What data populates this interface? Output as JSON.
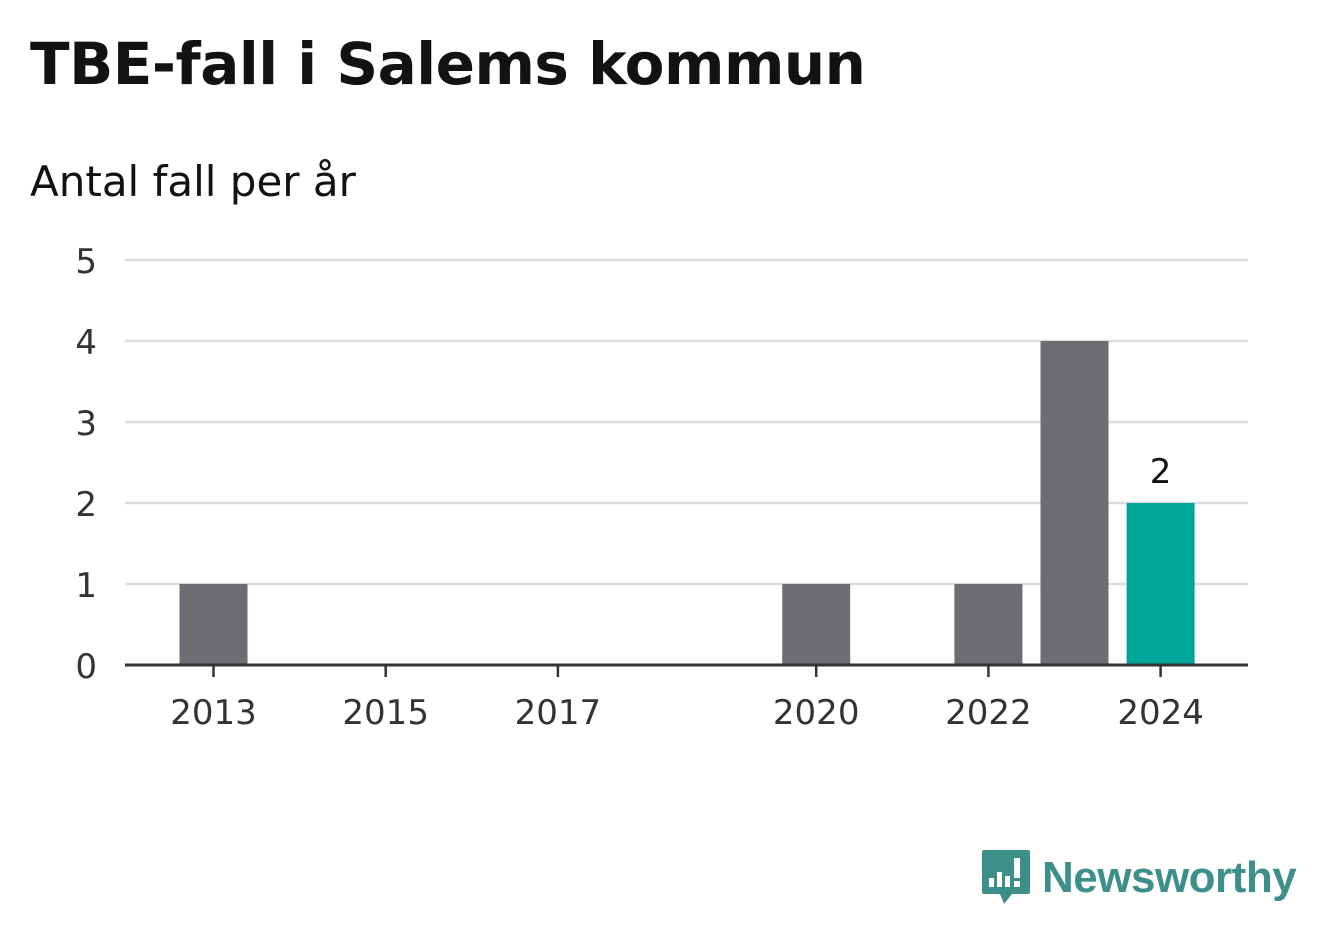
{
  "chart_data": {
    "type": "bar",
    "title": "TBE-fall i Salems kommun",
    "subtitle": "Antal fall per år",
    "categories": [
      "2013",
      "2014",
      "2015",
      "2016",
      "2017",
      "2018",
      "2019",
      "2020",
      "2021",
      "2022",
      "2023",
      "2024"
    ],
    "values": [
      1,
      0,
      0,
      0,
      0,
      0,
      0,
      1,
      0,
      1,
      4,
      2
    ],
    "x_tick_labels": [
      "2013",
      "2015",
      "2017",
      "2020",
      "2022",
      "2024"
    ],
    "y_tick_labels": [
      "0",
      "1",
      "2",
      "3",
      "4",
      "5"
    ],
    "ylim": [
      0,
      5
    ],
    "grid": true,
    "highlight_category": "2024",
    "data_labels": [
      {
        "category": "2024",
        "text": "2"
      }
    ],
    "colors": {
      "bar": "#6e6d73",
      "highlight": "#00a69a",
      "grid": "#dcdcdc",
      "axis": "#333333"
    }
  },
  "branding": {
    "logo_text": "Newsworthy",
    "logo_color": "#3d8f8a",
    "logo_icon": "bar-chart-speech-bubble-icon"
  }
}
